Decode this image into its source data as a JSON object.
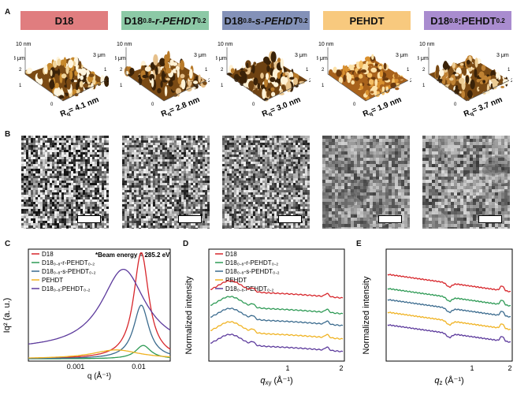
{
  "panel_labels": {
    "A": "A",
    "B": "B",
    "C": "C",
    "D": "D",
    "E": "E"
  },
  "headers": [
    {
      "main": "D18",
      "sub": "",
      "rest": "",
      "color": "#e07d7f"
    },
    {
      "main": "D18",
      "sub": "0.8",
      "rest": "-r-PEHDT",
      "sub2": "0.2",
      "color": "#8cc9a6"
    },
    {
      "main": "D18",
      "sub": "0.8",
      "rest": "-s-PEHDT",
      "sub2": "0.2",
      "color": "#8391b8"
    },
    {
      "main": "PEHDT",
      "sub": "",
      "rest": "",
      "color": "#f8c97e"
    },
    {
      "main": "D18",
      "sub": "0.8",
      "rest": ":PEHDT",
      "sub2": "0.2",
      "color": "#a98ccf"
    }
  ],
  "afm": {
    "z_label": "10 nm",
    "y_label": "3 μm",
    "x_label": "3 μm",
    "ticks": [
      "2",
      "1",
      "0",
      "1",
      "2"
    ],
    "rq": [
      "R",
      "R",
      "R",
      "R",
      "R"
    ],
    "rq_values": [
      "= 4.1 nm",
      "= 2.8 nm",
      "= 3.0 nm",
      "= 1.9 nm",
      "= 3.7 nm"
    ],
    "rq_sub": "q"
  },
  "panel_c": {
    "annotation": "*Beam energy = 285.2 eV",
    "ylabel": "Iq² (a. u.)",
    "xlabel": "q (Å⁻¹)",
    "xticks": [
      "0.001",
      "0.01"
    ]
  },
  "panel_d": {
    "ylabel": "Normalized intensity",
    "xlabel": "q",
    "xlabel_sub": "xy",
    "xlabel_unit": " (Å⁻¹)",
    "xticks": [
      "1",
      "2"
    ]
  },
  "panel_e": {
    "ylabel": "Normalized intensity",
    "xlabel": "q",
    "xlabel_sub": "z",
    "xlabel_unit": " (Å⁻¹)",
    "xticks": [
      "1",
      "2"
    ]
  },
  "legend": [
    {
      "text": "D18",
      "color": "#d7262b"
    },
    {
      "text": "D18₀.₈-r-PEHDT₀.₂",
      "color": "#2e9a55"
    },
    {
      "text": "D18₀.₈-s-PEHDT₀.₂",
      "color": "#3b6b8e"
    },
    {
      "text": "PEHDT",
      "color": "#f0b323"
    },
    {
      "text": "D18₀.₈:PEHDT₀.₂",
      "color": "#5c3a9c"
    }
  ],
  "chart_data": [
    {
      "type": "line",
      "xlabel": "q (Å⁻¹)",
      "ylabel": "Iq² (a. u.)",
      "x_scale": "log",
      "xlim": [
        0.0004,
        0.02
      ],
      "series": [
        {
          "name": "D18",
          "peak_q": 0.009,
          "peak_height": 0.95
        },
        {
          "name": "D18₀.₈-r-PEHDT₀.₂",
          "peak_q": 0.0095,
          "peak_height": 0.12
        },
        {
          "name": "D18₀.₈-s-PEHDT₀.₂",
          "peak_q": 0.009,
          "peak_height": 0.48
        },
        {
          "name": "PEHDT",
          "peak_q": 0.0045,
          "peak_height": 0.08
        },
        {
          "name": "D18₀.₈:PEHDT₀.₂",
          "peak_q": 0.0055,
          "peak_height": 0.72
        }
      ]
    },
    {
      "type": "line",
      "xlabel": "qxy (Å⁻¹)",
      "ylabel": "Normalized intensity",
      "x_ticks": [
        1,
        2
      ],
      "series": [
        {
          "name": "D18"
        },
        {
          "name": "D18₀.₈-r-PEHDT₀.₂"
        },
        {
          "name": "D18₀.₈-s-PEHDT₀.₂"
        },
        {
          "name": "PEHDT"
        },
        {
          "name": "D18₀.₈:PEHDT₀.₂"
        }
      ]
    },
    {
      "type": "line",
      "xlabel": "qz (Å⁻¹)",
      "ylabel": "Normalized intensity",
      "x_ticks": [
        1,
        2
      ],
      "series": [
        {
          "name": "D18"
        },
        {
          "name": "D18₀.₈-r-PEHDT₀.₂"
        },
        {
          "name": "D18₀.₈-s-PEHDT₀.₂"
        },
        {
          "name": "PEHDT"
        },
        {
          "name": "D18₀.₈:PEHDT₀.₂"
        }
      ]
    }
  ]
}
